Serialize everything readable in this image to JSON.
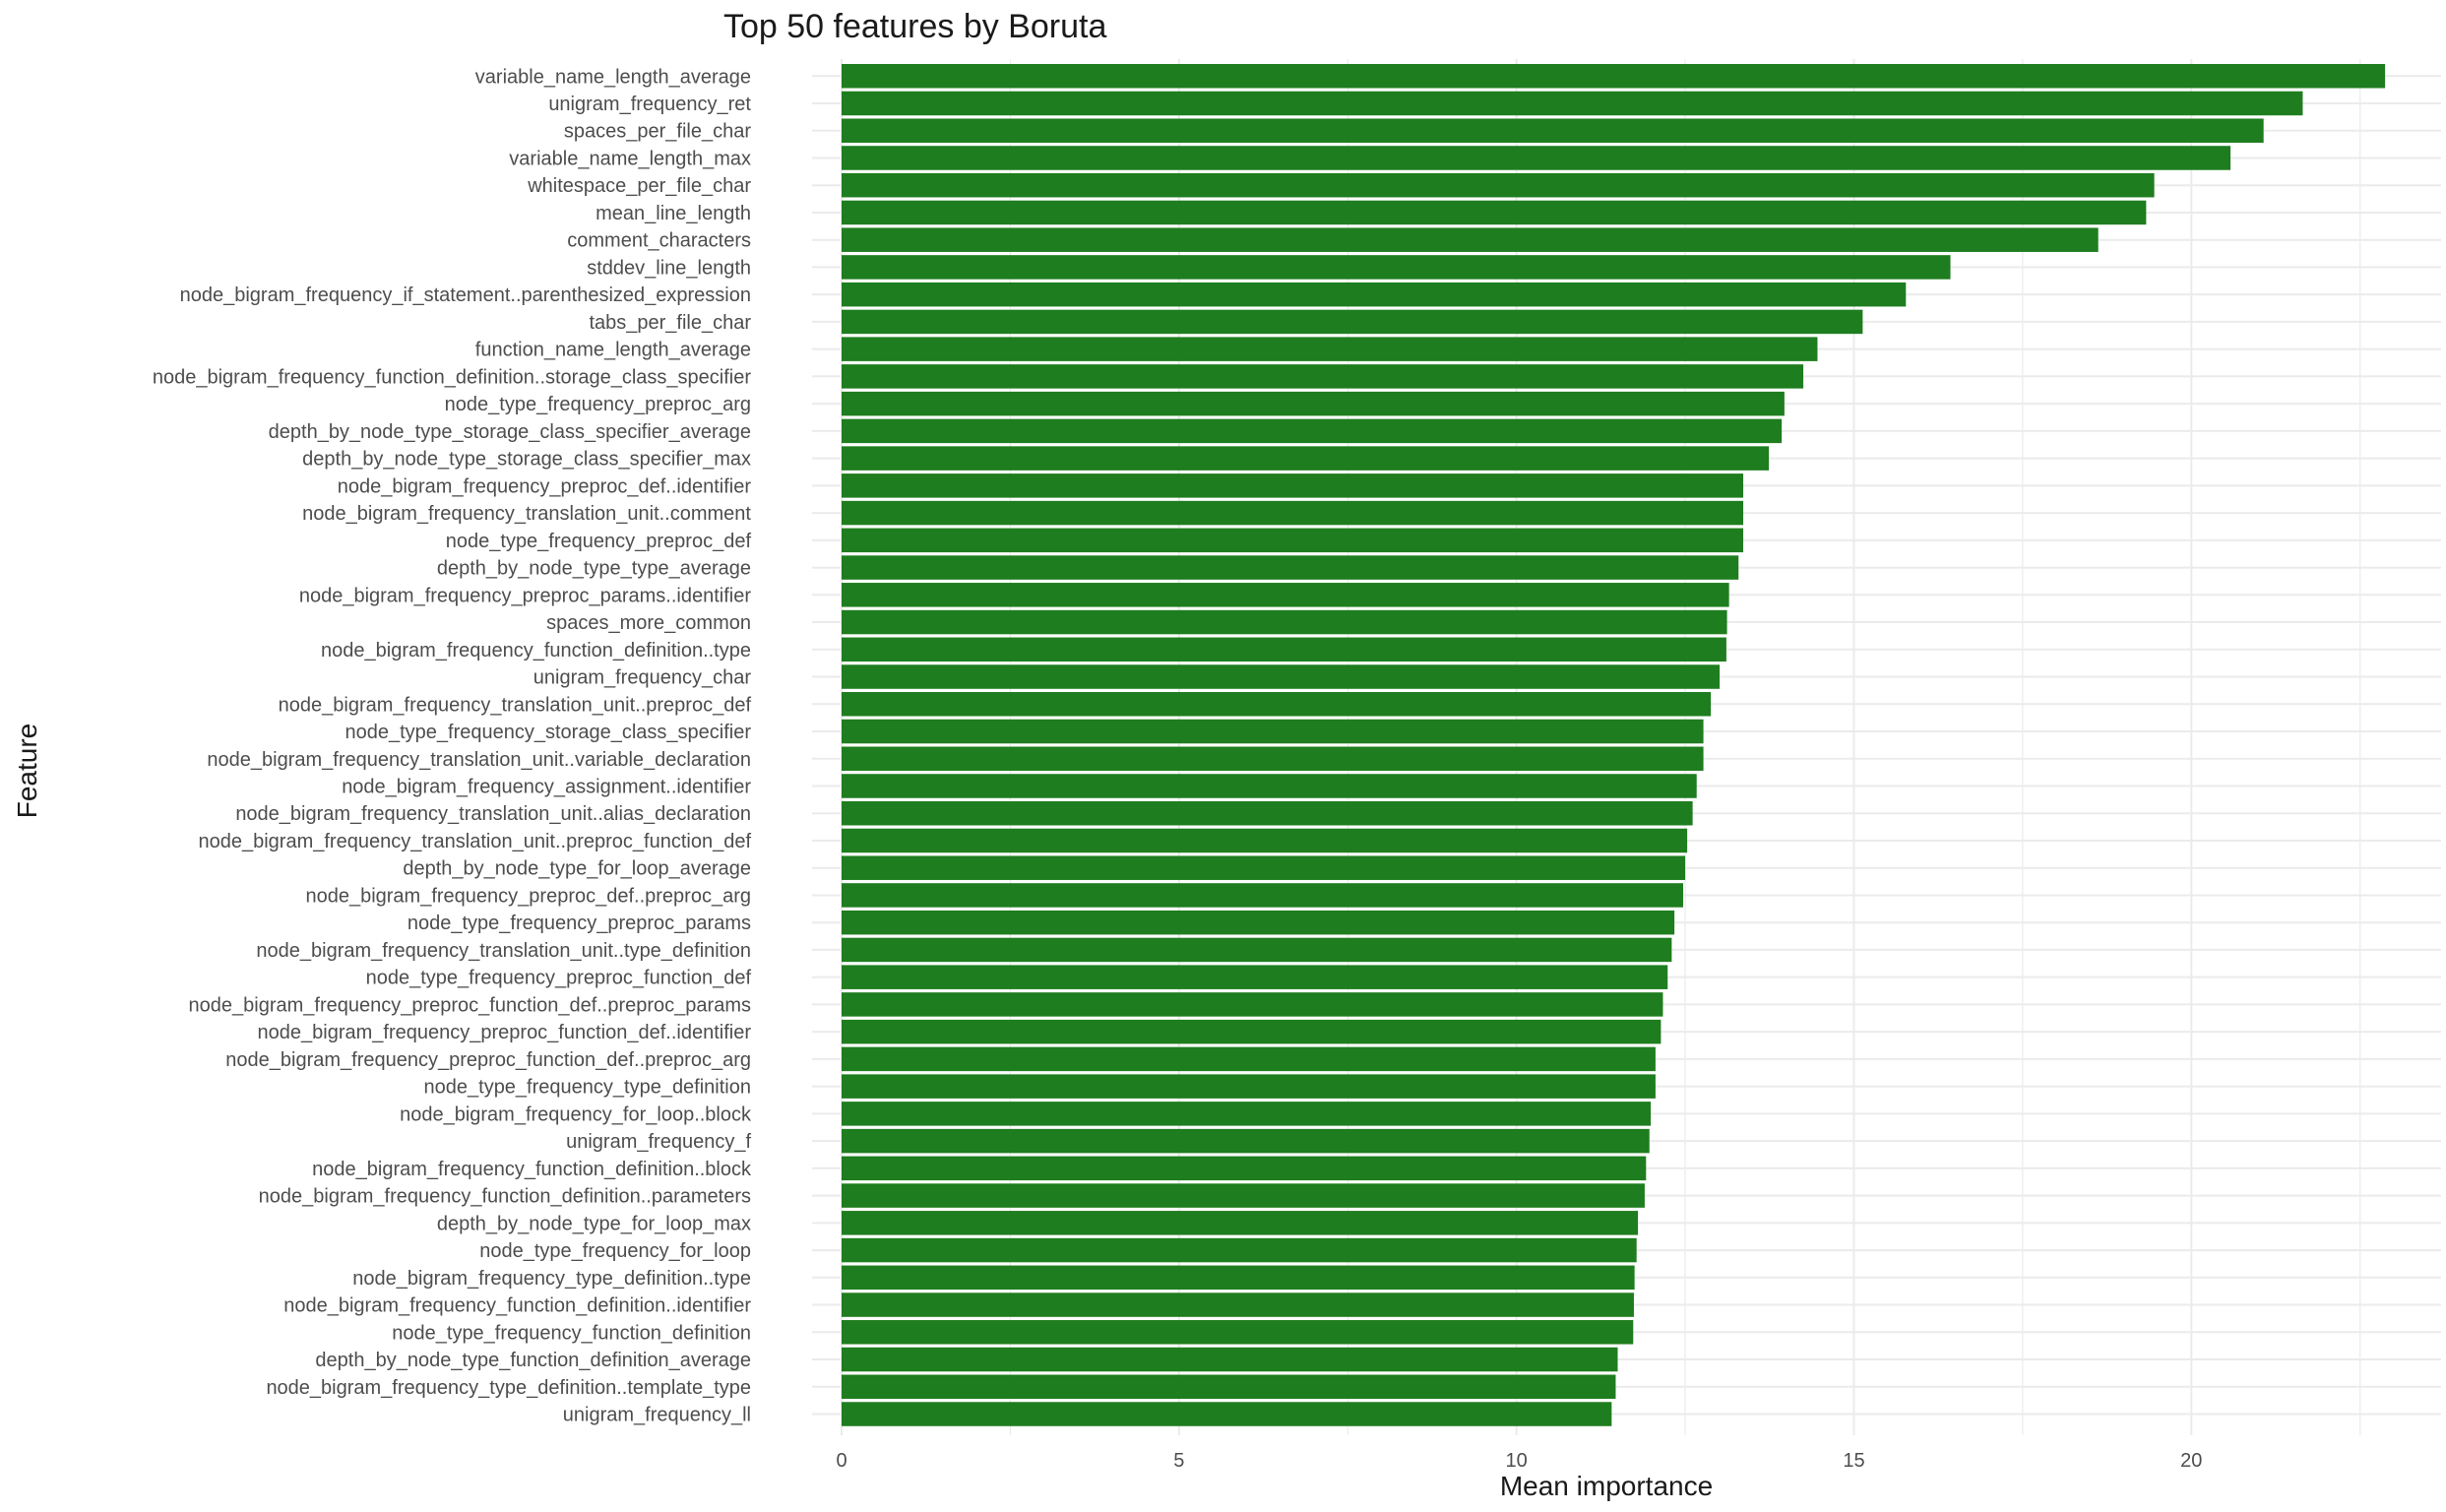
{
  "chart_data": {
    "type": "bar",
    "orientation": "horizontal",
    "title": "Top 50 features by Boruta",
    "xlabel": "Mean importance",
    "ylabel": "Feature",
    "xlim": [
      0,
      23.7
    ],
    "xticks": [
      0,
      5,
      10,
      15,
      20
    ],
    "grid": true,
    "bar_color": "#1e7d1e",
    "categories": [
      "variable_name_length_average",
      "unigram_frequency_ret",
      "spaces_per_file_char",
      "variable_name_length_max",
      "whitespace_per_file_char",
      "mean_line_length",
      "comment_characters",
      "stddev_line_length",
      "node_bigram_frequency_if_statement..parenthesized_expression",
      "tabs_per_file_char",
      "function_name_length_average",
      "node_bigram_frequency_function_definition..storage_class_specifier",
      "node_type_frequency_preproc_arg",
      "depth_by_node_type_storage_class_specifier_average",
      "depth_by_node_type_storage_class_specifier_max",
      "node_bigram_frequency_preproc_def..identifier",
      "node_bigram_frequency_translation_unit..comment",
      "node_type_frequency_preproc_def",
      "depth_by_node_type_type_average",
      "node_bigram_frequency_preproc_params..identifier",
      "spaces_more_common",
      "node_bigram_frequency_function_definition..type",
      "unigram_frequency_char",
      "node_bigram_frequency_translation_unit..preproc_def",
      "node_type_frequency_storage_class_specifier",
      "node_bigram_frequency_translation_unit..variable_declaration",
      "node_bigram_frequency_assignment..identifier",
      "node_bigram_frequency_translation_unit..alias_declaration",
      "node_bigram_frequency_translation_unit..preproc_function_def",
      "depth_by_node_type_for_loop_average",
      "node_bigram_frequency_preproc_def..preproc_arg",
      "node_type_frequency_preproc_params",
      "node_bigram_frequency_translation_unit..type_definition",
      "node_type_frequency_preproc_function_def",
      "node_bigram_frequency_preproc_function_def..preproc_params",
      "node_bigram_frequency_preproc_function_def..identifier",
      "node_bigram_frequency_preproc_function_def..preproc_arg",
      "node_type_frequency_type_definition",
      "node_bigram_frequency_for_loop..block",
      "unigram_frequency_f",
      "node_bigram_frequency_function_definition..block",
      "node_bigram_frequency_function_definition..parameters",
      "depth_by_node_type_for_loop_max",
      "node_type_frequency_for_loop",
      "node_bigram_frequency_type_definition..type",
      "node_bigram_frequency_function_definition..identifier",
      "node_type_frequency_function_definition",
      "depth_by_node_type_function_definition_average",
      "node_bigram_frequency_type_definition..template_type",
      "unigram_frequency_ll"
    ],
    "values": [
      22.87,
      21.65,
      21.07,
      20.58,
      19.45,
      19.33,
      18.62,
      16.43,
      15.77,
      15.13,
      14.46,
      14.25,
      13.97,
      13.93,
      13.74,
      13.36,
      13.36,
      13.36,
      13.29,
      13.15,
      13.12,
      13.11,
      13.01,
      12.88,
      12.77,
      12.77,
      12.67,
      12.61,
      12.53,
      12.5,
      12.47,
      12.34,
      12.3,
      12.24,
      12.17,
      12.14,
      12.06,
      12.06,
      11.99,
      11.97,
      11.92,
      11.9,
      11.8,
      11.78,
      11.75,
      11.74,
      11.73,
      11.5,
      11.47,
      11.41
    ]
  }
}
